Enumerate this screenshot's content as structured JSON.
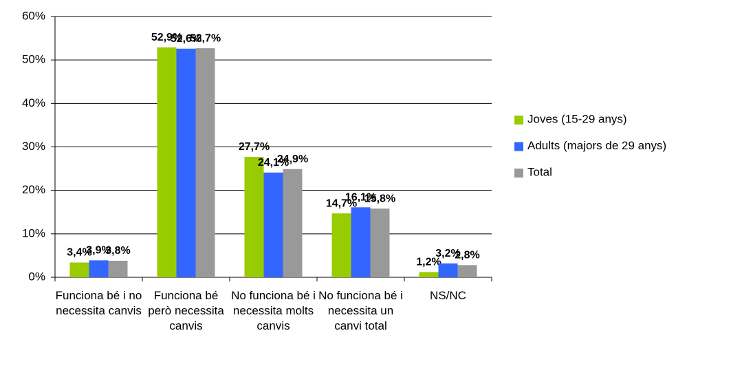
{
  "chart_data": {
    "type": "bar",
    "categories": [
      "Funciona bé i no necessita canvis",
      "Funciona bé però necessita canvis",
      "No funciona bé i necessita molts canvis",
      "No funciona bé i necessita un canvi total",
      "NS/NC"
    ],
    "series": [
      {
        "name": "Joves (15-29 anys)",
        "color": "#99cc00",
        "values": [
          3.4,
          52.9,
          27.7,
          14.7,
          1.2
        ],
        "value_labels": [
          "3,4%",
          "52,9%",
          "27,7%",
          "14,7%",
          "1,2%"
        ]
      },
      {
        "name": "Adults (majors de 29 anys)",
        "color": "#3366ff",
        "values": [
          3.9,
          52.6,
          24.1,
          16.1,
          3.2
        ],
        "value_labels": [
          "3,9%",
          "52,6%",
          "24,1%",
          "16,1%",
          "3,2%"
        ]
      },
      {
        "name": "Total",
        "color": "#999999",
        "values": [
          3.8,
          52.7,
          24.9,
          15.8,
          2.8
        ],
        "value_labels": [
          "3,8%",
          "52,7%",
          "24,9%",
          "15,8%",
          "2,8%"
        ]
      }
    ],
    "ylim": [
      0,
      60
    ],
    "yticks": [
      {
        "value": 0,
        "label": "0%"
      },
      {
        "value": 10,
        "label": "10%"
      },
      {
        "value": 20,
        "label": "20%"
      },
      {
        "value": 30,
        "label": "30%"
      },
      {
        "value": 40,
        "label": "40%"
      },
      {
        "value": 50,
        "label": "50%"
      },
      {
        "value": 60,
        "label": "60%"
      }
    ],
    "grid": true,
    "legend": "right"
  }
}
